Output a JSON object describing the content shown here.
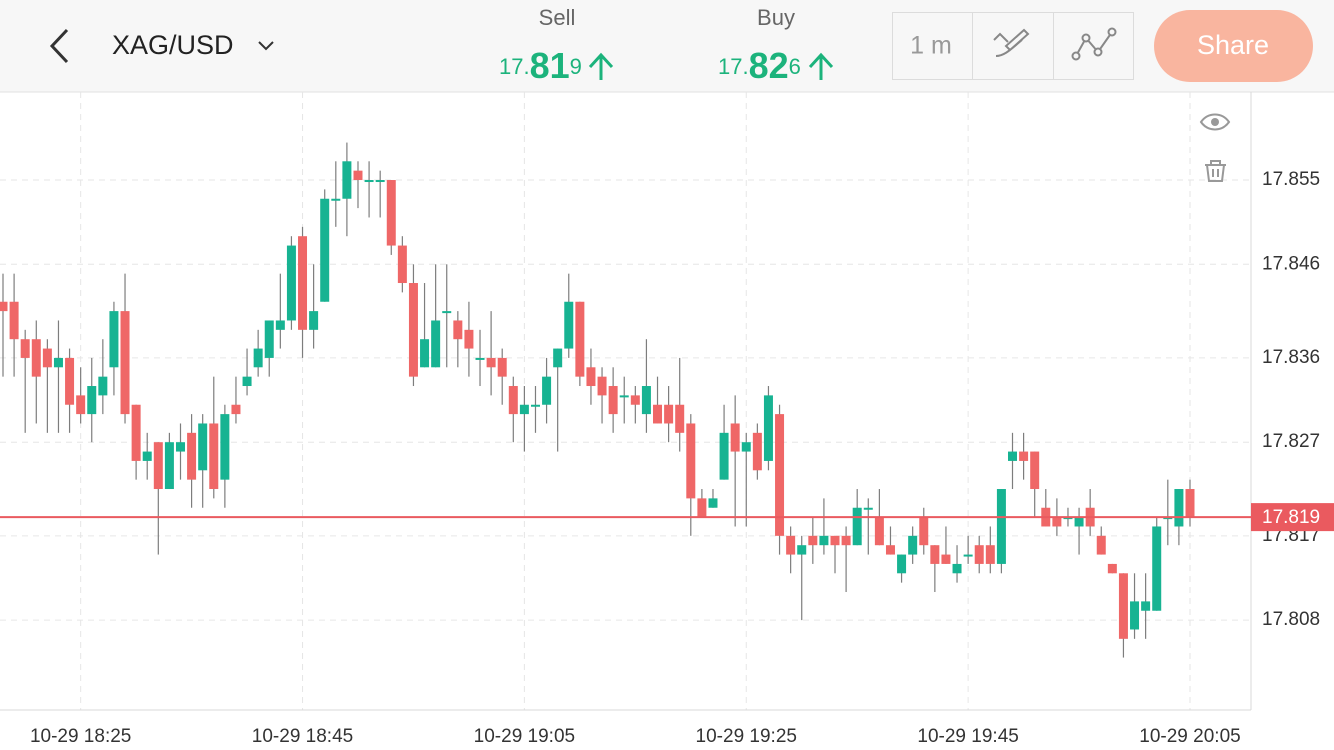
{
  "header": {
    "symbol": "XAG/USD",
    "sell_label": "Sell",
    "sell_price": [
      "17.",
      "81",
      "9"
    ],
    "buy_label": "Buy",
    "buy_price": [
      "17.",
      "82",
      "6"
    ],
    "interval": "1 m",
    "share": "Share"
  },
  "chart_data": {
    "type": "candlestick",
    "categories": [
      null,
      null,
      null,
      null,
      null,
      null,
      null,
      "10-29 18:25",
      null,
      null,
      null,
      null,
      null,
      null,
      null,
      null,
      null,
      null,
      null,
      null,
      null,
      null,
      null,
      null,
      null,
      null,
      null,
      "10-29 18:45",
      null,
      null,
      null,
      null,
      null,
      null,
      null,
      null,
      null,
      null,
      null,
      null,
      null,
      null,
      null,
      null,
      null,
      null,
      null,
      "10-29 19:05",
      null,
      null,
      null,
      null,
      null,
      null,
      null,
      null,
      null,
      null,
      null,
      null,
      null,
      null,
      null,
      null,
      null,
      null,
      null,
      "10-29 19:25",
      null,
      null,
      null,
      null,
      null,
      null,
      null,
      null,
      null,
      null,
      null,
      null,
      null,
      null,
      null,
      null,
      null,
      null,
      null,
      "10-29 19:45",
      null,
      null,
      null,
      null,
      null,
      null,
      null,
      null,
      null,
      null,
      null,
      null,
      null,
      null,
      null,
      null,
      null,
      null,
      null,
      "10-29 20:05"
    ],
    "open": [
      17.842,
      17.842,
      17.838,
      17.838,
      17.837,
      17.835,
      17.836,
      17.832,
      17.83,
      17.832,
      17.835,
      17.841,
      17.831,
      17.825,
      17.827,
      17.822,
      17.826,
      17.828,
      17.824,
      17.829,
      17.823,
      17.831,
      17.833,
      17.835,
      17.836,
      17.839,
      17.84,
      17.849,
      17.839,
      17.842,
      17.853,
      17.853,
      17.856,
      17.855,
      17.855,
      17.855,
      17.848,
      17.844,
      17.835,
      17.835,
      17.841,
      17.84,
      17.839,
      17.836,
      17.836,
      17.836,
      17.833,
      17.83,
      17.831,
      17.831,
      17.835,
      17.837,
      17.842,
      17.835,
      17.834,
      17.833,
      17.832,
      17.832,
      17.83,
      17.831,
      17.831,
      17.831,
      17.829,
      17.821,
      17.82,
      17.823,
      17.829,
      17.826,
      17.828,
      17.825,
      17.83,
      17.817,
      17.815,
      17.817,
      17.816,
      17.817,
      17.817,
      17.816,
      17.82,
      17.819,
      17.816,
      17.813,
      17.815,
      17.819,
      17.816,
      17.815,
      17.813,
      17.815,
      17.816,
      17.816,
      17.814,
      17.825,
      17.826,
      17.826,
      17.82,
      17.819,
      17.819,
      17.818,
      17.82,
      17.817,
      17.814,
      17.813,
      17.807,
      17.809,
      17.809,
      17.819,
      17.818,
      17.822
    ],
    "high": [
      17.845,
      17.845,
      17.839,
      17.84,
      17.838,
      17.84,
      17.837,
      17.835,
      17.836,
      17.838,
      17.842,
      17.845,
      17.831,
      17.828,
      17.827,
      17.828,
      17.829,
      17.83,
      17.83,
      17.834,
      17.831,
      17.834,
      17.837,
      17.839,
      17.84,
      17.845,
      17.849,
      17.85,
      17.846,
      17.854,
      17.857,
      17.859,
      17.857,
      17.857,
      17.856,
      17.855,
      17.849,
      17.846,
      17.844,
      17.846,
      17.846,
      17.841,
      17.842,
      17.839,
      17.841,
      17.837,
      17.834,
      17.833,
      17.833,
      17.836,
      17.837,
      17.845,
      17.842,
      17.837,
      17.835,
      17.835,
      17.834,
      17.833,
      17.838,
      17.834,
      17.833,
      17.836,
      17.83,
      17.822,
      17.822,
      17.831,
      17.832,
      17.828,
      17.829,
      17.833,
      17.831,
      17.818,
      17.817,
      17.819,
      17.821,
      17.817,
      17.818,
      17.822,
      17.821,
      17.822,
      17.818,
      17.815,
      17.818,
      17.82,
      17.816,
      17.818,
      17.816,
      17.817,
      17.817,
      17.818,
      17.822,
      17.828,
      17.828,
      17.826,
      17.822,
      17.821,
      17.82,
      17.82,
      17.822,
      17.818,
      17.814,
      17.813,
      17.813,
      17.813,
      17.819,
      17.823,
      17.822,
      17.823
    ],
    "low": [
      17.834,
      17.834,
      17.828,
      17.829,
      17.828,
      17.828,
      17.828,
      17.829,
      17.827,
      17.83,
      17.832,
      17.829,
      17.823,
      17.823,
      17.815,
      17.822,
      17.823,
      17.82,
      17.82,
      17.821,
      17.82,
      17.829,
      17.832,
      17.834,
      17.834,
      17.837,
      17.839,
      17.836,
      17.837,
      17.842,
      17.85,
      17.849,
      17.852,
      17.851,
      17.851,
      17.847,
      17.843,
      17.833,
      17.835,
      17.835,
      17.835,
      17.835,
      17.834,
      17.833,
      17.832,
      17.831,
      17.827,
      17.826,
      17.828,
      17.829,
      17.826,
      17.836,
      17.833,
      17.831,
      17.829,
      17.828,
      17.829,
      17.829,
      17.828,
      17.829,
      17.827,
      17.826,
      17.817,
      17.819,
      17.82,
      17.823,
      17.818,
      17.818,
      17.823,
      17.824,
      17.815,
      17.813,
      17.808,
      17.814,
      17.815,
      17.813,
      17.811,
      17.816,
      17.815,
      17.816,
      17.815,
      17.812,
      17.814,
      17.815,
      17.811,
      17.814,
      17.812,
      17.814,
      17.813,
      17.813,
      17.813,
      17.822,
      17.823,
      17.819,
      17.818,
      17.817,
      17.818,
      17.815,
      17.817,
      17.815,
      17.813,
      17.804,
      17.806,
      17.806,
      17.809,
      17.816,
      17.816,
      17.818
    ],
    "close": [
      17.841,
      17.838,
      17.836,
      17.834,
      17.835,
      17.836,
      17.831,
      17.83,
      17.833,
      17.834,
      17.841,
      17.83,
      17.825,
      17.826,
      17.822,
      17.827,
      17.827,
      17.823,
      17.829,
      17.822,
      17.83,
      17.83,
      17.834,
      17.837,
      17.84,
      17.84,
      17.848,
      17.839,
      17.841,
      17.853,
      17.853,
      17.857,
      17.855,
      17.855,
      17.855,
      17.848,
      17.844,
      17.834,
      17.838,
      17.84,
      17.841,
      17.838,
      17.837,
      17.836,
      17.835,
      17.834,
      17.83,
      17.831,
      17.831,
      17.834,
      17.837,
      17.842,
      17.834,
      17.833,
      17.832,
      17.83,
      17.832,
      17.831,
      17.833,
      17.829,
      17.829,
      17.828,
      17.821,
      17.819,
      17.821,
      17.828,
      17.826,
      17.827,
      17.824,
      17.832,
      17.817,
      17.815,
      17.816,
      17.816,
      17.817,
      17.816,
      17.816,
      17.82,
      17.82,
      17.816,
      17.815,
      17.815,
      17.817,
      17.816,
      17.814,
      17.814,
      17.814,
      17.815,
      17.814,
      17.814,
      17.822,
      17.826,
      17.825,
      17.822,
      17.818,
      17.818,
      17.819,
      17.819,
      17.818,
      17.815,
      17.813,
      17.806,
      17.81,
      17.81,
      17.818,
      17.819,
      17.822,
      17.819
    ],
    "up_color": "#17b392",
    "down_color": "#ef6767",
    "wick_color": "#7d7d7d",
    "ylim": [
      17.7984,
      17.8644
    ],
    "yticks": [
      17.855,
      17.846,
      17.836,
      17.827,
      17.817,
      17.808
    ],
    "grid": true,
    "current_price": 17.819,
    "current_price_color": "#ea5a5f"
  }
}
